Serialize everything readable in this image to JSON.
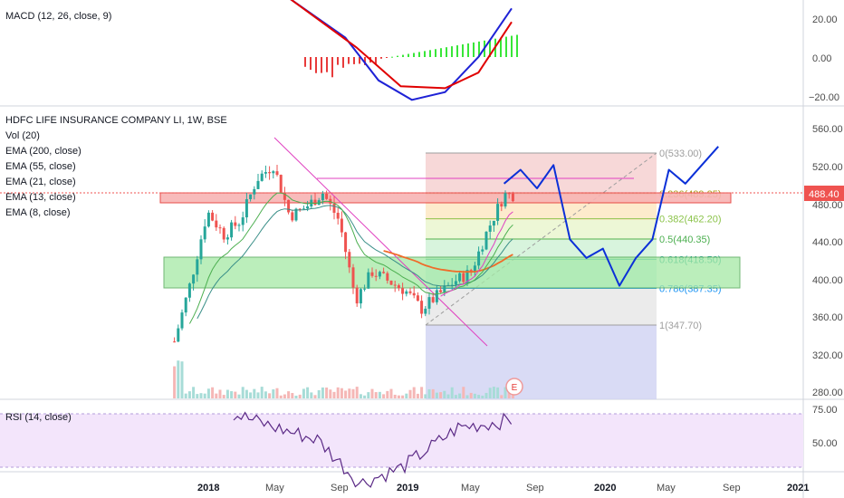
{
  "colors": {
    "up": "#26a69a",
    "down": "#ef5350",
    "macd_line": "#1e22d6",
    "signal_line": "#e00000",
    "hist_pos": "#39e639",
    "hist_neg": "#e83a3a",
    "projection": "#0b30d8",
    "ema_pink": "#e040c0",
    "ema_orange": "#ef6c2a",
    "ema_teal": "#3a8f88",
    "ema_green": "#4caf50",
    "price_badge": "#ef5350",
    "rsi_band": "#f3e5fb",
    "rsi_line": "#5b2a86"
  },
  "macd": {
    "title": "MACD (12, 26, close, 9)",
    "axis": [
      "20.00",
      "0.00",
      "−20.00"
    ]
  },
  "main": {
    "title": "HDFC LIFE INSURANCE COMPANY LI, 1W, BSE",
    "legend": [
      "Vol (20)",
      "EMA (200, close)",
      "EMA (55, close)",
      "EMA (21, close)",
      "EMA (13, close)",
      "EMA (8, close)"
    ],
    "axis": [
      "560.00",
      "520.00",
      "480.00",
      "440.00",
      "400.00",
      "360.00",
      "320.00",
      "280.00"
    ],
    "last_price": "488.40",
    "marker": "E"
  },
  "fib": [
    {
      "label": "0(533.00)",
      "value": 533.0,
      "color": "#9e9e9e"
    },
    {
      "label": "0.236(489.25)",
      "value": 489.25,
      "color": "#b0a020"
    },
    {
      "label": "0.382(462.20)",
      "value": 462.2,
      "color": "#8bc34a"
    },
    {
      "label": "0.5(440.35)",
      "value": 440.35,
      "color": "#4caf50"
    },
    {
      "label": "0.618(418.50)",
      "value": 418.5,
      "color": "#26a69a"
    },
    {
      "label": "0.786(387.35)",
      "value": 387.35,
      "color": "#2196f3"
    },
    {
      "label": "1(347.70)",
      "value": 347.7,
      "color": "#9e9e9e"
    }
  ],
  "rsi": {
    "title": "RSI (14, close)",
    "axis": [
      "75.00",
      "50.00"
    ]
  },
  "time_axis": [
    "2018",
    "May",
    "Sep",
    "2019",
    "May",
    "Sep",
    "2020",
    "May",
    "Sep",
    "2021"
  ],
  "chart_data": {
    "type": "candlestick",
    "title": "HDFC LIFE INSURANCE COMPANY LI, 1W, BSE",
    "ylim": [
      270,
      575
    ],
    "last_price": 488.4,
    "zones": [
      {
        "name": "resistance",
        "low": 483,
        "high": 493
      },
      {
        "name": "support",
        "low": 390,
        "high": 420
      }
    ],
    "close_path": [
      [
        "2017-11",
        330
      ],
      [
        "2017-12",
        395
      ],
      [
        "2018-01",
        470
      ],
      [
        "2018-02",
        445
      ],
      [
        "2018-03",
        460
      ],
      [
        "2018-04",
        505
      ],
      [
        "2018-05",
        520
      ],
      [
        "2018-06",
        465
      ],
      [
        "2018-07",
        475
      ],
      [
        "2018-08",
        490
      ],
      [
        "2018-09",
        460
      ],
      [
        "2018-10",
        375
      ],
      [
        "2018-11",
        405
      ],
      [
        "2018-12",
        395
      ],
      [
        "2019-01",
        385
      ],
      [
        "2019-02",
        365
      ],
      [
        "2019-03",
        380
      ],
      [
        "2019-04",
        395
      ],
      [
        "2019-05",
        405
      ],
      [
        "2019-06",
        450
      ],
      [
        "2019-07",
        488
      ]
    ],
    "projection_path": [
      [
        "2019-07",
        500
      ],
      [
        "2019-08",
        515
      ],
      [
        "2019-09",
        495
      ],
      [
        "2019-10",
        520
      ],
      [
        "2019-11",
        440
      ],
      [
        "2019-12",
        420
      ],
      [
        "2020-01",
        430
      ],
      [
        "2020-02",
        390
      ],
      [
        "2020-03",
        420
      ],
      [
        "2020-04",
        440
      ],
      [
        "2020-05",
        515
      ],
      [
        "2020-06",
        500
      ],
      [
        "2020-08",
        540
      ]
    ],
    "macd_path": [
      [
        0,
        30
      ],
      [
        0.25,
        10
      ],
      [
        0.4,
        -12
      ],
      [
        0.55,
        -22
      ],
      [
        0.7,
        -18
      ],
      [
        0.85,
        0
      ],
      [
        1,
        25
      ]
    ],
    "signal_path": [
      [
        0,
        30
      ],
      [
        0.3,
        5
      ],
      [
        0.5,
        -15
      ],
      [
        0.7,
        -16
      ],
      [
        0.85,
        -8
      ],
      [
        1,
        18
      ]
    ],
    "rsi_path": [
      [
        0,
        75
      ],
      [
        0.15,
        68
      ],
      [
        0.3,
        62
      ],
      [
        0.45,
        40
      ],
      [
        0.6,
        48
      ],
      [
        0.8,
        68
      ],
      [
        1,
        72
      ]
    ]
  }
}
